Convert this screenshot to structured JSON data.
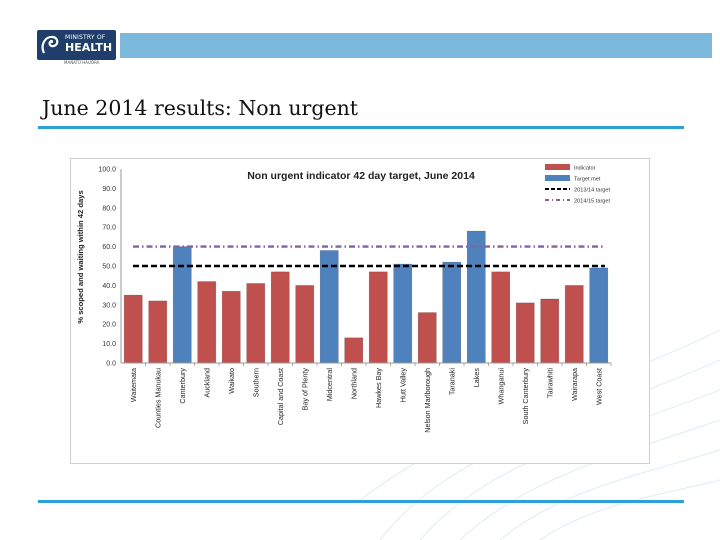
{
  "header": {
    "logo_line1": "MINISTRY OF",
    "logo_line2": "HEALTH",
    "logo_sub": "MANATŪ HAUORA"
  },
  "slide": {
    "title": "June 2014 results: Non urgent"
  },
  "colors": {
    "band": "#7ab8dc",
    "rule": "#2ca1d4",
    "indicator": "#c0504d",
    "target_met": "#4f81bd",
    "target_1314": "#000000",
    "target_1415": "#8064a2"
  },
  "chart_data": {
    "type": "bar",
    "title": "Non urgent indicator 42 day target, June 2014",
    "xlabel": "",
    "ylabel": "% scoped and waiting within 42 days",
    "ylim": [
      0,
      100
    ],
    "yticks": [
      0.0,
      10.0,
      20.0,
      30.0,
      40.0,
      50.0,
      60.0,
      70.0,
      80.0,
      90.0,
      100.0
    ],
    "categories": [
      "Waitemata",
      "Counties Manukau",
      "Canterbury",
      "Auckland",
      "Waikato",
      "Southern",
      "Capital and Coast",
      "Bay of Plenty",
      "Midcentral",
      "Northland",
      "Hawkes Bay",
      "Hutt Valley",
      "Nelson Marlborough",
      "Taranaki",
      "Lakes",
      "Whanganui",
      "South Canterbury",
      "Tairawhiti",
      "Wairarapa",
      "West Coast"
    ],
    "values": [
      35,
      32,
      60,
      42,
      37,
      41,
      47,
      40,
      58,
      13,
      47,
      51,
      26,
      52,
      68,
      47,
      31,
      33,
      40,
      49
    ],
    "status": [
      "indicator",
      "indicator",
      "target met",
      "indicator",
      "indicator",
      "indicator",
      "indicator",
      "indicator",
      "target met",
      "indicator",
      "indicator",
      "target met",
      "indicator",
      "target met",
      "target met",
      "indicator",
      "indicator",
      "indicator",
      "indicator",
      "target met"
    ],
    "targets": [
      {
        "name": "2013/14 target",
        "value": 50,
        "style": "dashed"
      },
      {
        "name": "2014/15 target",
        "value": 60,
        "style": "dash-dot"
      }
    ],
    "legend": [
      "Indicator",
      "Target met",
      "2013/14 target",
      "2014/15 target"
    ],
    "legend_position": "top-right",
    "grid": false
  }
}
